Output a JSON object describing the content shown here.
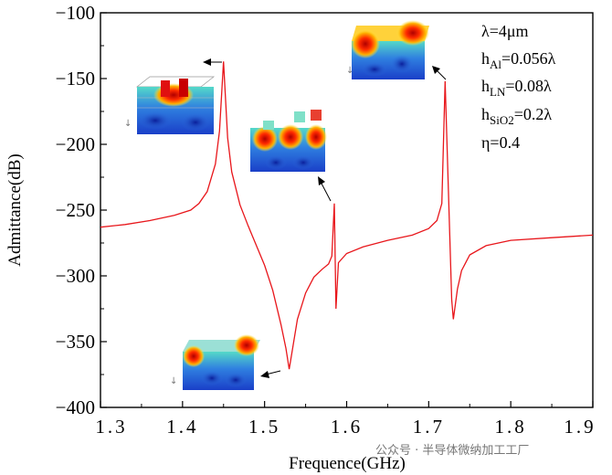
{
  "chart_data": {
    "type": "line",
    "title": "",
    "xlabel": "Frequence(GHz)",
    "ylabel": "Admittance(dB)",
    "xlim": [
      1.3,
      1.9
    ],
    "ylim": [
      -400,
      -100
    ],
    "x_tick_labels": [
      "1.3",
      "1.4",
      "1.5",
      "1.6",
      "1.7",
      "1.8",
      "1.9"
    ],
    "x_ticks": [
      1.3,
      1.4,
      1.5,
      1.6,
      1.7,
      1.8,
      1.9
    ],
    "y_tick_labels": [
      "−100",
      "−150",
      "−200",
      "−250",
      "−300",
      "−350",
      "−400"
    ],
    "y_ticks": [
      -100,
      -150,
      -200,
      -250,
      -300,
      -350,
      -400
    ],
    "grid": false,
    "series": [
      {
        "name": "Admittance",
        "color": "#e8161b",
        "x": [
          1.3,
          1.33,
          1.36,
          1.39,
          1.41,
          1.42,
          1.43,
          1.44,
          1.445,
          1.45,
          1.455,
          1.46,
          1.47,
          1.48,
          1.49,
          1.5,
          1.51,
          1.52,
          1.526,
          1.53,
          1.535,
          1.54,
          1.55,
          1.56,
          1.57,
          1.578,
          1.582,
          1.585,
          1.587,
          1.59,
          1.6,
          1.62,
          1.65,
          1.68,
          1.7,
          1.71,
          1.716,
          1.72,
          1.724,
          1.728,
          1.73,
          1.735,
          1.74,
          1.75,
          1.77,
          1.8,
          1.85,
          1.9
        ],
        "y": [
          -263,
          -261,
          -258,
          -254,
          -250,
          -245,
          -236,
          -215,
          -190,
          -137,
          -195,
          -221,
          -246,
          -262,
          -277,
          -292,
          -311,
          -337,
          -355,
          -371,
          -352,
          -333,
          -313,
          -301,
          -295,
          -291,
          -285,
          -245,
          -325,
          -290,
          -283,
          -278,
          -273,
          -269,
          -264,
          -258,
          -245,
          -152,
          -235,
          -318,
          -333,
          -310,
          -296,
          -284,
          -277,
          -273,
          -271,
          -269
        ]
      }
    ],
    "annotations": {
      "lambda": "λ=4μm",
      "h_al_base": "h",
      "h_al_sub": "Al",
      "h_al_value": "=0.056λ",
      "h_ln_base": "h",
      "h_ln_sub": "LN",
      "h_ln_value": "=0.08λ",
      "h_sio2_base": "h",
      "h_sio2_sub": "SiO2",
      "h_sio2_value": "=0.2λ",
      "eta": "η=0.4"
    },
    "watermark": "公众号 · 半导体微纳加工工厂"
  }
}
